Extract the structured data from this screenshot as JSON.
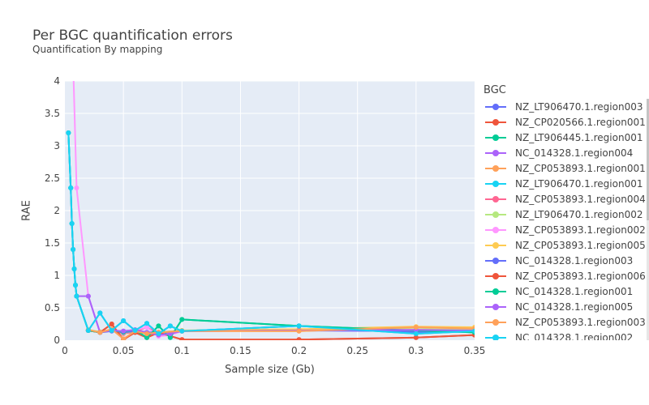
{
  "chart_data": {
    "type": "line",
    "title": "Per BGC quantification errors",
    "subtitle": "Quantification By mapping",
    "xlabel": "Sample size (Gb)",
    "ylabel": "RAE",
    "xlim": [
      0,
      0.35
    ],
    "ylim": [
      0,
      4
    ],
    "xticks": [
      0,
      0.05,
      0.1,
      0.15,
      0.2,
      0.25,
      0.3,
      0.35
    ],
    "xtick_labels": [
      "0",
      "0.05",
      "0.1",
      "0.15",
      "0.2",
      "0.25",
      "0.3",
      "0.35"
    ],
    "yticks": [
      0,
      0.5,
      1,
      1.5,
      2,
      2.5,
      3,
      3.5,
      4
    ],
    "ytick_labels": [
      "0",
      "0.5",
      "1",
      "1.5",
      "2",
      "2.5",
      "3",
      "3.5",
      "4"
    ],
    "grid": true,
    "legend_title": "BGC",
    "legend_position": "right",
    "series": [
      {
        "name": "NZ_LT906470.1.region003",
        "color": "#636efa",
        "x": [
          0.003,
          0.005,
          0.006,
          0.007,
          0.008,
          0.009,
          0.01,
          0.02,
          0.03,
          0.04,
          0.05,
          0.06,
          0.07,
          0.08,
          0.09,
          0.1,
          0.2,
          0.3,
          0.35
        ],
        "y": [
          3.2,
          2.35,
          1.8,
          1.4,
          1.1,
          0.85,
          0.68,
          0.15,
          0.42,
          0.15,
          0.3,
          0.15,
          0.26,
          0.1,
          0.22,
          0.14,
          0.22,
          0.12,
          0.15
        ]
      },
      {
        "name": "NZ_CP020566.1.region001",
        "color": "#EF553B",
        "x": [
          0.02,
          0.03,
          0.04,
          0.05,
          0.06,
          0.07,
          0.08,
          0.1,
          0.2,
          0.3,
          0.35
        ],
        "y": [
          0.15,
          0.12,
          0.25,
          0.01,
          0.12,
          0.04,
          0.12,
          0.01,
          0.01,
          0.04,
          0.08
        ]
      },
      {
        "name": "NZ_LT906445.1.region001",
        "color": "#00cc96",
        "x": [
          0.02,
          0.03,
          0.04,
          0.05,
          0.06,
          0.07,
          0.08,
          0.09,
          0.1,
          0.2,
          0.3,
          0.35
        ],
        "y": [
          0.15,
          0.12,
          0.15,
          0.13,
          0.16,
          0.04,
          0.22,
          0.04,
          0.32,
          0.22,
          0.15,
          0.12
        ]
      },
      {
        "name": "NC_014328.1.region004",
        "color": "#ab63fa",
        "x": [
          0.01,
          0.02,
          0.03,
          0.04,
          0.05,
          0.06,
          0.07,
          0.08,
          0.09,
          0.1,
          0.2,
          0.3,
          0.35
        ],
        "y": [
          0.68,
          0.68,
          0.12,
          0.15,
          0.14,
          0.16,
          0.12,
          0.08,
          0.1,
          0.14,
          0.15,
          0.16,
          0.15
        ]
      },
      {
        "name": "NZ_CP053893.1.region001",
        "color": "#FFA15A",
        "x": [
          0.02,
          0.03,
          0.04,
          0.05,
          0.06,
          0.07,
          0.08,
          0.1,
          0.2,
          0.3,
          0.35
        ],
        "y": [
          0.16,
          0.12,
          0.17,
          0.02,
          0.14,
          0.1,
          0.12,
          0.14,
          0.14,
          0.2,
          0.18
        ]
      },
      {
        "name": "NZ_LT906470.1.region001",
        "color": "#19d3f3",
        "x": [
          0.003,
          0.005,
          0.006,
          0.007,
          0.008,
          0.009,
          0.01,
          0.02,
          0.03,
          0.04,
          0.05,
          0.06,
          0.07,
          0.08,
          0.09,
          0.1,
          0.2,
          0.3,
          0.35
        ],
        "y": [
          3.2,
          2.35,
          1.8,
          1.4,
          1.1,
          0.85,
          0.68,
          0.15,
          0.42,
          0.15,
          0.3,
          0.15,
          0.26,
          0.1,
          0.22,
          0.14,
          0.22,
          0.1,
          0.14
        ]
      },
      {
        "name": "NZ_CP053893.1.region004",
        "color": "#FF6692",
        "x": [
          0.02,
          0.03,
          0.04,
          0.05,
          0.06,
          0.07,
          0.08,
          0.1,
          0.2,
          0.3,
          0.35
        ],
        "y": [
          0.15,
          0.12,
          0.15,
          0.1,
          0.13,
          0.2,
          0.1,
          0.14,
          0.16,
          0.15,
          0.14
        ]
      },
      {
        "name": "NZ_LT906470.1.region002",
        "color": "#B6E880",
        "x": [
          0.02,
          0.03,
          0.04,
          0.05,
          0.06,
          0.07,
          0.08,
          0.1,
          0.2,
          0.3,
          0.35
        ],
        "y": [
          0.16,
          0.13,
          0.15,
          0.11,
          0.14,
          0.1,
          0.12,
          0.15,
          0.16,
          0.17,
          0.16
        ]
      },
      {
        "name": "NZ_CP053893.1.region002",
        "color": "#FF97FF",
        "x": [
          0.007,
          0.01,
          0.02,
          0.03,
          0.04,
          0.05,
          0.06,
          0.07,
          0.08,
          0.09,
          0.1,
          0.2,
          0.3,
          0.35
        ],
        "y": [
          4.3,
          2.35,
          0.68,
          0.12,
          0.15,
          0.12,
          0.16,
          0.2,
          0.06,
          0.08,
          0.14,
          0.15,
          0.16,
          0.14
        ]
      },
      {
        "name": "NZ_CP053893.1.region005",
        "color": "#FECB52",
        "x": [
          0.02,
          0.03,
          0.04,
          0.05,
          0.06,
          0.07,
          0.08,
          0.1,
          0.2,
          0.3,
          0.35
        ],
        "y": [
          0.15,
          0.12,
          0.15,
          0.12,
          0.14,
          0.12,
          0.12,
          0.15,
          0.17,
          0.21,
          0.2
        ]
      },
      {
        "name": "NC_014328.1.region003",
        "color": "#636efa",
        "x": [
          0.02,
          0.03,
          0.04,
          0.05,
          0.06,
          0.07,
          0.08,
          0.1,
          0.2,
          0.3,
          0.35
        ],
        "y": [
          0.15,
          0.12,
          0.14,
          0.12,
          0.14,
          0.12,
          0.12,
          0.14,
          0.15,
          0.14,
          0.15
        ]
      },
      {
        "name": "NZ_CP053893.1.region006",
        "color": "#EF553B",
        "x": [
          0.02,
          0.03,
          0.04,
          0.05,
          0.06,
          0.07,
          0.08,
          0.1,
          0.2,
          0.3,
          0.35
        ],
        "y": [
          0.15,
          0.12,
          0.25,
          0.01,
          0.12,
          0.04,
          0.12,
          0.01,
          0.01,
          0.04,
          0.08
        ]
      },
      {
        "name": "NC_014328.1.region001",
        "color": "#00cc96",
        "x": [
          0.003,
          0.005,
          0.006,
          0.007,
          0.008,
          0.009,
          0.01,
          0.02,
          0.03,
          0.04,
          0.05,
          0.06,
          0.07,
          0.08,
          0.09,
          0.1,
          0.2,
          0.3,
          0.35
        ],
        "y": [
          3.2,
          2.35,
          1.8,
          1.4,
          1.1,
          0.85,
          0.68,
          0.15,
          0.12,
          0.15,
          0.13,
          0.16,
          0.04,
          0.22,
          0.04,
          0.32,
          0.22,
          0.15,
          0.12
        ]
      },
      {
        "name": "NC_014328.1.region005",
        "color": "#ab63fa",
        "x": [
          0.02,
          0.03,
          0.04,
          0.05,
          0.06,
          0.07,
          0.08,
          0.09,
          0.1,
          0.2,
          0.3,
          0.35
        ],
        "y": [
          0.68,
          0.12,
          0.15,
          0.14,
          0.16,
          0.12,
          0.08,
          0.1,
          0.14,
          0.15,
          0.16,
          0.15
        ]
      },
      {
        "name": "NZ_CP053893.1.region003",
        "color": "#FFA15A",
        "x": [
          0.02,
          0.03,
          0.04,
          0.05,
          0.06,
          0.07,
          0.08,
          0.1,
          0.2,
          0.3,
          0.35
        ],
        "y": [
          0.16,
          0.12,
          0.17,
          0.02,
          0.14,
          0.1,
          0.12,
          0.14,
          0.14,
          0.2,
          0.18
        ]
      },
      {
        "name": "NC_014328.1.region002",
        "color": "#19d3f3",
        "x": [
          0.003,
          0.005,
          0.006,
          0.007,
          0.008,
          0.009,
          0.01,
          0.02,
          0.03,
          0.04,
          0.05,
          0.06,
          0.07,
          0.08,
          0.09,
          0.1,
          0.2,
          0.3,
          0.35
        ],
        "y": [
          3.2,
          2.35,
          1.8,
          1.4,
          1.1,
          0.85,
          0.68,
          0.15,
          0.42,
          0.15,
          0.3,
          0.15,
          0.26,
          0.1,
          0.22,
          0.14,
          0.22,
          0.1,
          0.14
        ]
      }
    ]
  }
}
